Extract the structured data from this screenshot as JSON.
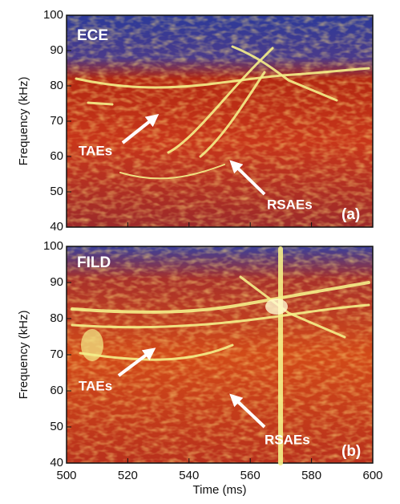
{
  "chart_data": [
    {
      "type": "spectrogram",
      "ylabel": "Frequency (kHz)",
      "xlim": [
        500,
        600
      ],
      "xticks": [
        500,
        520,
        540,
        560,
        580,
        600
      ],
      "ylim": [
        40,
        100
      ],
      "yticks": [
        40,
        50,
        60,
        70,
        80,
        90,
        100
      ],
      "annotations": [
        "ECE",
        "TAEs",
        "RSAEs",
        "(a)"
      ]
    },
    {
      "type": "spectrogram",
      "ylabel": "Frequency (kHz)",
      "xlabel": "Time (ms)",
      "xlim": [
        500,
        600
      ],
      "xticks": [
        500,
        520,
        540,
        560,
        580,
        600
      ],
      "ylim": [
        40,
        100
      ],
      "yticks": [
        40,
        50,
        60,
        70,
        80,
        90,
        100
      ],
      "annotations": [
        "FILD",
        "TAEs",
        "RSAEs",
        "(b)"
      ]
    }
  ]
}
